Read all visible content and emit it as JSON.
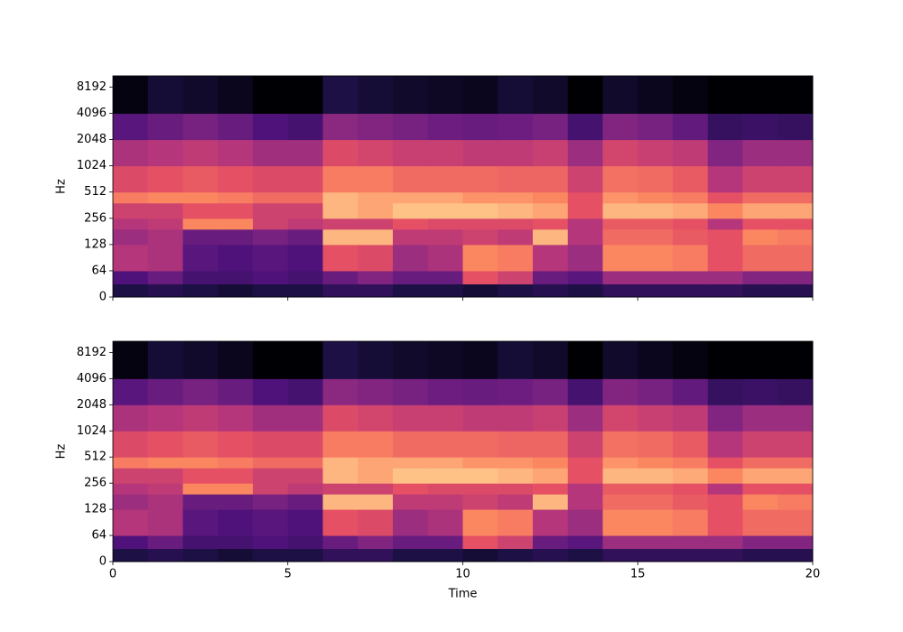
{
  "chart_data": [
    {
      "type": "spectrogram",
      "ylabel": "Hz",
      "yscale": "symlog",
      "linthresh": 64,
      "colormap": "magma",
      "zlim": [
        -80,
        0
      ],
      "xlim": [
        0,
        20
      ],
      "xticks": [
        0,
        5,
        10,
        15,
        20
      ],
      "xticklabels": false,
      "ylim": [
        0,
        11025
      ],
      "yticks": [
        0,
        64,
        128,
        256,
        512,
        1024,
        2048,
        4096,
        8192
      ],
      "x_edges": [
        0,
        1,
        2,
        3,
        4,
        5,
        6,
        7,
        8,
        9,
        10,
        11,
        12,
        13,
        14,
        15,
        16,
        17,
        18,
        19,
        20
      ],
      "y_edges": [
        0,
        32,
        64,
        128,
        192,
        256,
        384,
        512,
        1024,
        2048,
        4096,
        11025
      ],
      "values": [
        [
          -70,
          -68,
          -70,
          -72,
          -70,
          -70,
          -66,
          -66,
          -70,
          -70,
          -72,
          -70,
          -68,
          -70,
          -66,
          -66,
          -66,
          -66,
          -68,
          -68
        ],
        [
          -60,
          -55,
          -62,
          -62,
          -60,
          -62,
          -55,
          -50,
          -55,
          -55,
          -30,
          -35,
          -55,
          -58,
          -45,
          -45,
          -45,
          -45,
          -50,
          -50
        ],
        [
          -40,
          -42,
          -58,
          -60,
          -58,
          -60,
          -30,
          -32,
          -45,
          -42,
          -20,
          -22,
          -40,
          -45,
          -20,
          -20,
          -22,
          -30,
          -25,
          -25
        ],
        [
          -45,
          -42,
          -55,
          -55,
          -52,
          -55,
          -12,
          -12,
          -38,
          -38,
          -35,
          -38,
          -12,
          -40,
          -25,
          -25,
          -28,
          -30,
          -20,
          -22
        ],
        [
          -40,
          -38,
          -20,
          -20,
          -35,
          -38,
          -35,
          -35,
          -30,
          -32,
          -32,
          -32,
          -30,
          -40,
          -28,
          -28,
          -30,
          -40,
          -30,
          -30
        ],
        [
          -35,
          -35,
          -30,
          -30,
          -35,
          -35,
          -12,
          -15,
          -10,
          -10,
          -10,
          -12,
          -15,
          -30,
          -12,
          -12,
          -14,
          -20,
          -15,
          -15
        ],
        [
          -22,
          -20,
          -20,
          -22,
          -25,
          -25,
          -12,
          -15,
          -15,
          -15,
          -18,
          -18,
          -20,
          -30,
          -18,
          -20,
          -22,
          -30,
          -25,
          -25
        ],
        [
          -32,
          -30,
          -28,
          -30,
          -32,
          -32,
          -22,
          -22,
          -25,
          -25,
          -25,
          -26,
          -26,
          -35,
          -24,
          -25,
          -28,
          -40,
          -35,
          -35
        ],
        [
          -42,
          -40,
          -38,
          -40,
          -44,
          -44,
          -32,
          -34,
          -36,
          -36,
          -38,
          -38,
          -36,
          -45,
          -34,
          -36,
          -38,
          -50,
          -45,
          -45
        ],
        [
          -58,
          -55,
          -52,
          -55,
          -60,
          -62,
          -48,
          -50,
          -52,
          -54,
          -55,
          -54,
          -52,
          -62,
          -50,
          -52,
          -56,
          -65,
          -64,
          -65
        ],
        [
          -78,
          -72,
          -74,
          -76,
          -80,
          -80,
          -70,
          -72,
          -74,
          -75,
          -76,
          -72,
          -74,
          -80,
          -74,
          -76,
          -78,
          -80,
          -80,
          -80
        ]
      ]
    },
    {
      "type": "spectrogram",
      "ylabel": "Hz",
      "xlabel": "Time",
      "yscale": "symlog",
      "linthresh": 64,
      "colormap": "magma",
      "zlim": [
        -80,
        0
      ],
      "xlim": [
        0,
        20
      ],
      "xticks": [
        0,
        5,
        10,
        15,
        20
      ],
      "xticklabels": true,
      "ylim": [
        0,
        11025
      ],
      "yticks": [
        0,
        64,
        128,
        256,
        512,
        1024,
        2048,
        4096,
        8192
      ],
      "x_edges": [
        0,
        1,
        2,
        3,
        4,
        5,
        6,
        7,
        8,
        9,
        10,
        11,
        12,
        13,
        14,
        15,
        16,
        17,
        18,
        19,
        20
      ],
      "y_edges": [
        0,
        32,
        64,
        128,
        192,
        256,
        384,
        512,
        1024,
        2048,
        4096,
        11025
      ],
      "values": [
        [
          -70,
          -68,
          -70,
          -72,
          -70,
          -70,
          -66,
          -66,
          -70,
          -70,
          -72,
          -70,
          -68,
          -70,
          -66,
          -66,
          -66,
          -66,
          -68,
          -68
        ],
        [
          -60,
          -55,
          -62,
          -62,
          -60,
          -62,
          -55,
          -50,
          -55,
          -55,
          -30,
          -35,
          -55,
          -58,
          -45,
          -45,
          -45,
          -45,
          -50,
          -50
        ],
        [
          -40,
          -42,
          -58,
          -60,
          -58,
          -60,
          -30,
          -32,
          -45,
          -42,
          -20,
          -22,
          -40,
          -45,
          -20,
          -20,
          -22,
          -30,
          -25,
          -25
        ],
        [
          -45,
          -42,
          -55,
          -55,
          -52,
          -55,
          -12,
          -12,
          -38,
          -38,
          -35,
          -38,
          -12,
          -40,
          -25,
          -25,
          -28,
          -30,
          -20,
          -22
        ],
        [
          -40,
          -38,
          -20,
          -20,
          -35,
          -38,
          -35,
          -35,
          -30,
          -32,
          -32,
          -32,
          -30,
          -40,
          -28,
          -28,
          -30,
          -40,
          -30,
          -30
        ],
        [
          -35,
          -35,
          -30,
          -30,
          -35,
          -35,
          -12,
          -15,
          -10,
          -10,
          -10,
          -12,
          -15,
          -30,
          -12,
          -12,
          -14,
          -20,
          -15,
          -15
        ],
        [
          -22,
          -20,
          -20,
          -22,
          -25,
          -25,
          -12,
          -15,
          -15,
          -15,
          -18,
          -18,
          -20,
          -30,
          -18,
          -20,
          -22,
          -30,
          -25,
          -25
        ],
        [
          -32,
          -30,
          -28,
          -30,
          -32,
          -32,
          -22,
          -22,
          -25,
          -25,
          -25,
          -26,
          -26,
          -35,
          -24,
          -25,
          -28,
          -40,
          -35,
          -35
        ],
        [
          -42,
          -40,
          -38,
          -40,
          -44,
          -44,
          -32,
          -34,
          -36,
          -36,
          -38,
          -38,
          -36,
          -45,
          -34,
          -36,
          -38,
          -50,
          -45,
          -45
        ],
        [
          -58,
          -55,
          -52,
          -55,
          -60,
          -62,
          -48,
          -50,
          -52,
          -54,
          -55,
          -54,
          -52,
          -62,
          -50,
          -52,
          -56,
          -65,
          -64,
          -65
        ],
        [
          -78,
          -72,
          -74,
          -76,
          -80,
          -80,
          -70,
          -72,
          -74,
          -75,
          -76,
          -72,
          -74,
          -80,
          -74,
          -76,
          -78,
          -80,
          -80,
          -80
        ]
      ]
    }
  ]
}
